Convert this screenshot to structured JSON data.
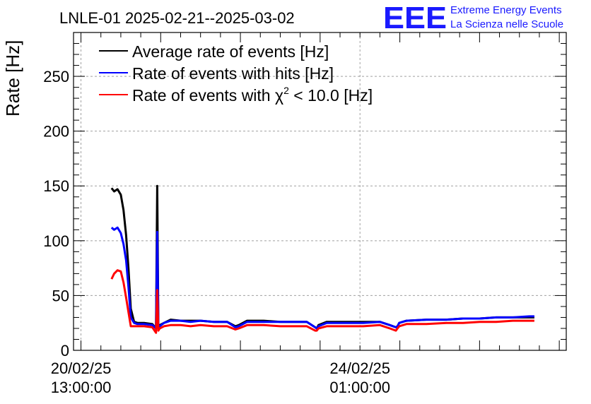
{
  "header": {
    "title": "LNLE-01 2025-02-21--2025-03-02",
    "logo_text": "EEE",
    "logo_line1": "Extreme Energy Events",
    "logo_line2": "La Scienza nelle Scuole"
  },
  "colors": {
    "average": "#000000",
    "hits": "#0000ff",
    "chi2": "#ff0000",
    "grid": "#a0a0a0",
    "logo": "#1a1aff"
  },
  "chart_data": {
    "type": "line",
    "title": "LNLE-01 2025-02-21--2025-03-02",
    "ylabel": "Rate [Hz]",
    "xlabel": "",
    "ylim": [
      0,
      290
    ],
    "xlim_hours": [
      -2.24,
      146.1
    ],
    "y_ticks": [
      "0",
      "50",
      "100",
      "150",
      "200",
      "250"
    ],
    "x_tick_labels": [
      {
        "date": "20/02/25",
        "time": "13:00:00",
        "hours": 0
      },
      {
        "date": "24/02/25",
        "time": "01:00:00",
        "hours": 84
      }
    ],
    "grid": true,
    "legend_position": "top-left",
    "legend": {
      "average": "Average rate of events [Hz]",
      "hits": "Rate of events with hits [Hz]",
      "chi2_prefix": "Rate of events with ",
      "chi2_symbol": "χ",
      "chi2_sup": "2",
      "chi2_suffix": " < 10.0 [Hz]"
    },
    "series": [
      {
        "name": "Average rate of events [Hz]",
        "x_hours": [
          9.2,
          10.0,
          11.0,
          12.0,
          12.8,
          13.6,
          14.3,
          15.0,
          16.0,
          17.0,
          19.0,
          21.5,
          22.6,
          22.95,
          23.3,
          23.7,
          25.0,
          27.0,
          30.0,
          33.0,
          36.0,
          40.0,
          44.0,
          46.5,
          47.5,
          50.0,
          55.0,
          60.0,
          65.0,
          68.0,
          70.5,
          71.0,
          71.5,
          74.0,
          80.0,
          85.0,
          90.0,
          93.0,
          94.8,
          95.3,
          95.8,
          98.0,
          104.0,
          110.0,
          115.0,
          120.0,
          125.0,
          130.0,
          135.0,
          136.5
        ],
        "values": [
          148,
          145,
          147,
          142,
          128,
          105,
          75,
          38,
          26,
          25,
          25,
          24,
          20,
          150,
          22,
          23,
          25,
          28,
          27,
          27,
          27,
          26,
          26,
          22,
          23,
          27,
          27,
          26,
          26,
          26,
          21,
          20,
          23,
          26,
          26,
          26,
          26,
          23,
          21,
          22,
          25,
          27,
          28,
          28,
          29,
          29,
          30,
          30,
          30,
          30
        ]
      },
      {
        "name": "Rate of events with hits [Hz]",
        "x_hours": [
          9.2,
          10.0,
          11.0,
          12.0,
          12.8,
          13.6,
          14.3,
          15.0,
          16.0,
          17.0,
          19.0,
          21.5,
          22.6,
          22.95,
          23.3,
          23.7,
          25.0,
          27.0,
          30.0,
          33.0,
          36.0,
          40.0,
          44.0,
          46.5,
          47.5,
          50.0,
          55.0,
          60.0,
          65.0,
          68.0,
          70.5,
          71.0,
          71.5,
          74.0,
          80.0,
          85.0,
          90.0,
          93.0,
          94.8,
          95.3,
          95.8,
          98.0,
          104.0,
          110.0,
          115.0,
          120.0,
          125.0,
          130.0,
          135.0,
          136.5
        ],
        "values": [
          112,
          110,
          112,
          107,
          97,
          82,
          58,
          30,
          25,
          24,
          24,
          23,
          20,
          108,
          21,
          22,
          25,
          27,
          27,
          26,
          27,
          26,
          26,
          21,
          22,
          26,
          26,
          26,
          26,
          26,
          21,
          20,
          22,
          25,
          25,
          25,
          26,
          23,
          21,
          22,
          25,
          27,
          28,
          28,
          29,
          29,
          30,
          30,
          31,
          31
        ]
      },
      {
        "name": "Rate of events with χ² < 10.0 [Hz]",
        "x_hours": [
          9.2,
          10.0,
          11.0,
          12.0,
          12.8,
          13.6,
          14.3,
          15.0,
          16.0,
          17.0,
          19.0,
          21.5,
          22.6,
          22.95,
          23.3,
          23.7,
          25.0,
          27.0,
          30.0,
          33.0,
          36.0,
          40.0,
          44.0,
          46.5,
          47.5,
          50.0,
          55.0,
          60.0,
          65.0,
          68.0,
          70.5,
          71.0,
          71.5,
          74.0,
          80.0,
          85.0,
          90.0,
          93.0,
          94.8,
          95.3,
          95.8,
          98.0,
          104.0,
          110.0,
          115.0,
          120.0,
          125.0,
          130.0,
          135.0,
          136.5
        ],
        "values": [
          65,
          70,
          73,
          72,
          62,
          48,
          35,
          22,
          22,
          22,
          22,
          21,
          16,
          55,
          18,
          20,
          22,
          23,
          23,
          22,
          23,
          22,
          22,
          19,
          20,
          23,
          23,
          22,
          22,
          22,
          18,
          18,
          20,
          22,
          22,
          22,
          23,
          20,
          18,
          20,
          22,
          24,
          24,
          25,
          25,
          26,
          26,
          27,
          27,
          27
        ]
      }
    ]
  }
}
